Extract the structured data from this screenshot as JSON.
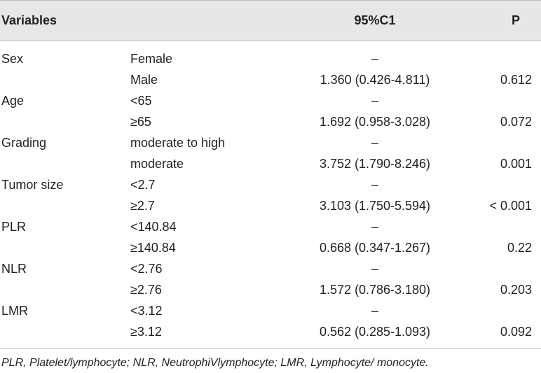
{
  "header": {
    "variables": "Variables",
    "ci": "95%C1",
    "p": "P"
  },
  "rows": [
    {
      "variable": "Sex",
      "level": "Female",
      "ci": "–",
      "p": ""
    },
    {
      "variable": "",
      "level": "Male",
      "ci": "1.360 (0.426-4.811)",
      "p": "0.612"
    },
    {
      "variable": "Age",
      "level": "<65",
      "ci": "–",
      "p": ""
    },
    {
      "variable": "",
      "level": "≥65",
      "ci": "1.692 (0.958-3.028)",
      "p": "0.072"
    },
    {
      "variable": "Grading",
      "level": "moderate to high",
      "ci": "–",
      "p": ""
    },
    {
      "variable": "",
      "level": "moderate",
      "ci": "3.752 (1.790-8.246)",
      "p": "0.001"
    },
    {
      "variable": "Tumor size",
      "level": "<2.7",
      "ci": "–",
      "p": ""
    },
    {
      "variable": "",
      "level": "≥2.7",
      "ci": "3.103 (1.750-5.594)",
      "p": "< 0.001"
    },
    {
      "variable": "PLR",
      "level": "<140.84",
      "ci": "–",
      "p": ""
    },
    {
      "variable": "",
      "level": "≥140.84",
      "ci": "0.668 (0.347-1.267)",
      "p": "0.22"
    },
    {
      "variable": "NLR",
      "level": "<2.76",
      "ci": "–",
      "p": ""
    },
    {
      "variable": "",
      "level": "≥2.76",
      "ci": "1.572 (0.786-3.180)",
      "p": "0.203"
    },
    {
      "variable": "LMR",
      "level": "<3.12",
      "ci": "–",
      "p": ""
    },
    {
      "variable": "",
      "level": "≥3.12",
      "ci": "0.562 (0.285-1.093)",
      "p": "0.092"
    }
  ],
  "footnote": "PLR, Platelet/lymphocyte; NLR, NeutrophiVlymphocyte; LMR, Lymphocyte/ monocyte."
}
